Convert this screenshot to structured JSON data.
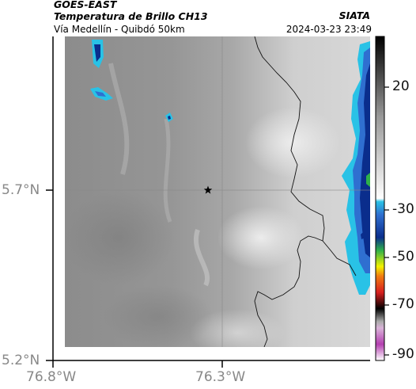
{
  "header": {
    "satellite": "GOES-EAST",
    "product": "Temperatura de Brillo CH13",
    "region": "Vía Medellín - Quibdó 50km",
    "brand": "SIATA",
    "timestamp": "2024-03-23 23:49"
  },
  "map": {
    "lat_labels": [
      "5.7°N",
      "5.2°N"
    ],
    "lon_labels": [
      "76.8°W",
      "76.3°W"
    ],
    "marker": "star-marker"
  },
  "colorbar": {
    "tick_labels": [
      "20",
      "-30",
      "-50",
      "-70",
      "-90"
    ],
    "colors": {
      "warm": "#9a9a9a",
      "cool": "#dcdcdc",
      "cyan": "#29c2e6",
      "blue": "#0a2d8c",
      "green": "#2eb04a",
      "yellow": "#f2f200",
      "red": "#d81f1f",
      "magenta": "#b43fb0"
    }
  }
}
